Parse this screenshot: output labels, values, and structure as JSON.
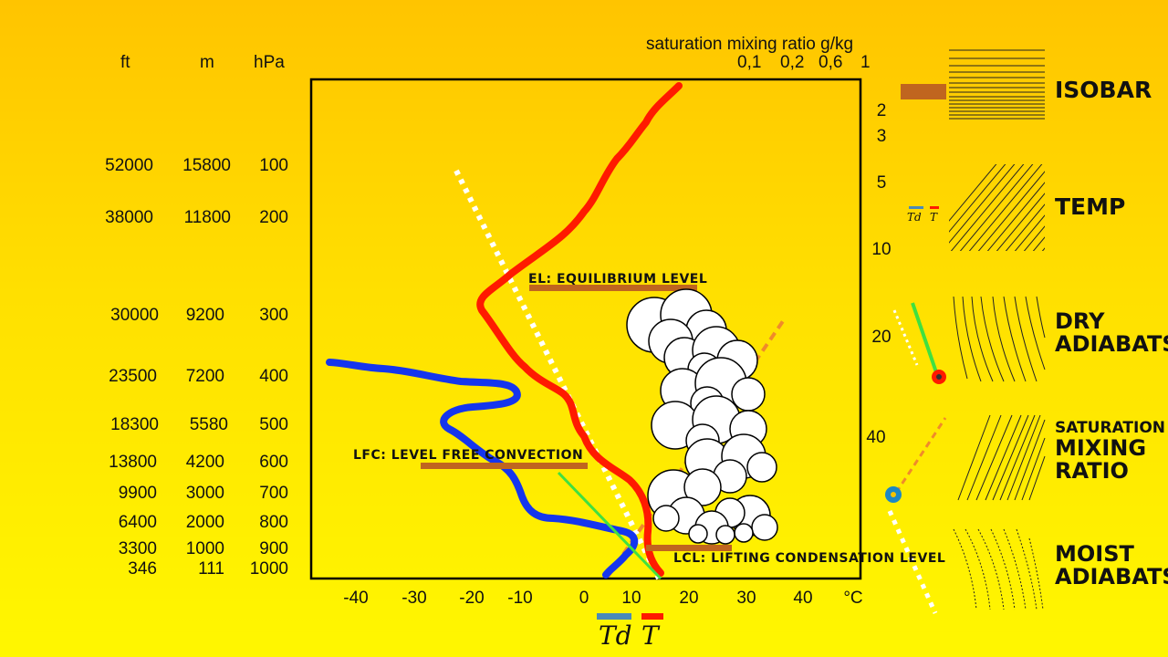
{
  "table": {
    "headers": {
      "ft": "ft",
      "m": "m",
      "hpa": "hPa"
    },
    "rows": [
      {
        "ft": "52000",
        "m": "15800",
        "hpa": "100"
      },
      {
        "ft": "38000",
        "m": "11800",
        "hpa": "200"
      },
      {
        "ft": "30000",
        "m": "9200",
        "hpa": "300"
      },
      {
        "ft": "23500",
        "m": "7200",
        "hpa": "400"
      },
      {
        "ft": "18300",
        "m": "5580",
        "hpa": "500"
      },
      {
        "ft": "13800",
        "m": "4200",
        "hpa": "600"
      },
      {
        "ft": "9900",
        "m": "3000",
        "hpa": "700"
      },
      {
        "ft": "6400",
        "m": "2000",
        "hpa": "800"
      },
      {
        "ft": "3300",
        "m": "1000",
        "hpa": "900"
      },
      {
        "ft": "346",
        "m": "111",
        "hpa": "1000"
      }
    ]
  },
  "saturation_mixing_ratio": {
    "title": "saturation mixing ratio g/kg",
    "values": [
      "0,1",
      "0,2",
      "0,6",
      "1"
    ],
    "right_values": [
      "2",
      "3",
      "5",
      "10",
      "20",
      "40"
    ]
  },
  "x_axis": {
    "ticks": [
      "-40",
      "-30",
      "-20",
      "-10",
      "0",
      "10",
      "20",
      "30",
      "40",
      "°C"
    ]
  },
  "levels": {
    "el": "EL: EQUILIBRIUM LEVEL",
    "lfc": "LFC: LEVEL FREE CONVECTION",
    "lcl": "LCL: LIFTING CONDENSATION LEVEL"
  },
  "bottom_legend": {
    "td": "Td",
    "t": "T"
  },
  "legend": {
    "isobar": "ISOBAR",
    "temp": "TEMP",
    "temp_td": "Td",
    "temp_t": "T",
    "dry_line1": "DRY",
    "dry_line2": "ADIABATS",
    "smr_line1": "SATURATION",
    "smr_line2": "MIXING",
    "smr_line3": "RATIO",
    "moist_line1": "MOIST",
    "moist_line2": "ADIABATS"
  },
  "colors": {
    "temperature": "#ff1a00",
    "dewpoint": "#1535ee",
    "level_bar": "#c0651f",
    "dry_adiabat": "#ffffff",
    "parcel": "#40e040",
    "mixing_ratio": "#f08a2a"
  }
}
